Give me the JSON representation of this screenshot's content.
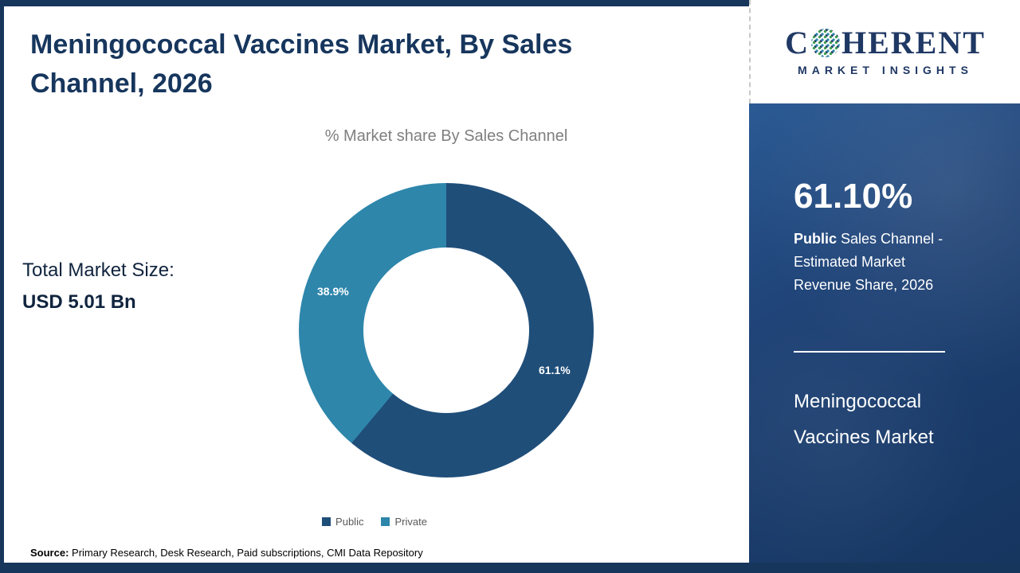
{
  "slide": {
    "title": "Meningococcal Vaccines Market,  By Sales Channel, 2026",
    "subtitle": "% Market share  By Sales Channel",
    "total_market_label": "Total Market Size:",
    "total_market_value": "USD 5.01 Bn",
    "source_label": "Source:",
    "source_text": " Primary Research, Desk Research, Paid subscriptions, CMI Data Repository"
  },
  "chart_data": {
    "type": "pie",
    "subtype": "donut",
    "title": "% Market share  By Sales Channel",
    "categories": [
      "Public",
      "Private"
    ],
    "values": [
      61.1,
      38.9
    ],
    "labels": [
      "61.1%",
      "38.9%"
    ],
    "colors": [
      "#1f4e79",
      "#2e86ab"
    ],
    "legend_position": "bottom",
    "start_angle_deg": 0,
    "direction": "clockwise"
  },
  "sidebar": {
    "logo_c": "C",
    "logo_rest": "HERENT",
    "logo_subtext": "MARKET INSIGHTS",
    "stat_value": "61.10%",
    "stat_bold": "Public",
    "stat_desc": " Sales Channel - Estimated Market Revenue Share, 2026",
    "market_name": "Meningococcal Vaccines Market"
  },
  "theme": {
    "accent_navy": "#1f4e79",
    "accent_teal": "#2e86ab",
    "panel_navy": "#1d3f6e",
    "title_color": "#17365d",
    "frame_navy": "#16365c"
  }
}
